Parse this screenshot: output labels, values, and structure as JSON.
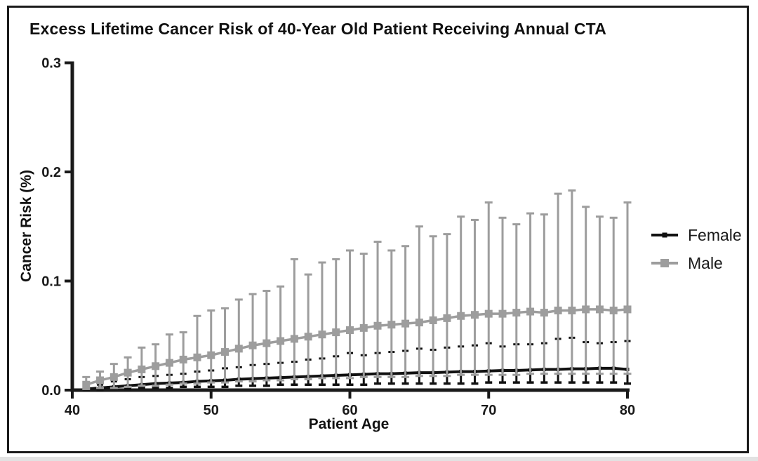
{
  "chart_data": {
    "type": "line",
    "title": "Excess Lifetime Cancer Risk of 40-Year Old Patient Receiving Annual CTA",
    "xlabel": "Patient Age",
    "ylabel": "Cancer Risk (%)",
    "xlim": [
      40,
      80
    ],
    "ylim": [
      0.0,
      0.3
    ],
    "x_ticks": [
      40,
      50,
      60,
      70,
      80
    ],
    "y_ticks": [
      "0.0",
      "0.1",
      "0.2",
      "0.3"
    ],
    "grid": false,
    "legend_position": "right-middle",
    "error_bars": true,
    "x": [
      41,
      42,
      43,
      44,
      45,
      46,
      47,
      48,
      49,
      50,
      51,
      52,
      53,
      54,
      55,
      56,
      57,
      58,
      59,
      60,
      61,
      62,
      63,
      64,
      65,
      66,
      67,
      68,
      69,
      70,
      71,
      72,
      73,
      74,
      75,
      76,
      77,
      78,
      79,
      80
    ],
    "series": [
      {
        "name": "Female",
        "color": "#111111",
        "marker": "small-square",
        "mean": [
          0.001,
          0.002,
          0.003,
          0.004,
          0.005,
          0.006,
          0.0065,
          0.007,
          0.008,
          0.0085,
          0.009,
          0.01,
          0.0105,
          0.011,
          0.0115,
          0.012,
          0.0125,
          0.013,
          0.0135,
          0.014,
          0.0145,
          0.015,
          0.015,
          0.0155,
          0.016,
          0.016,
          0.0165,
          0.017,
          0.017,
          0.0175,
          0.018,
          0.018,
          0.0185,
          0.019,
          0.019,
          0.0195,
          0.0195,
          0.02,
          0.02,
          0.019
        ],
        "upper": [
          0.003,
          0.005,
          0.008,
          0.01,
          0.012,
          0.013,
          0.014,
          0.015,
          0.017,
          0.018,
          0.02,
          0.021,
          0.023,
          0.024,
          0.025,
          0.026,
          0.028,
          0.029,
          0.031,
          0.034,
          0.032,
          0.034,
          0.035,
          0.036,
          0.038,
          0.037,
          0.039,
          0.04,
          0.041,
          0.043,
          0.04,
          0.042,
          0.042,
          0.043,
          0.047,
          0.048,
          0.044,
          0.043,
          0.044,
          0.045
        ],
        "lower": [
          0.0,
          0.0,
          0.001,
          0.001,
          0.002,
          0.002,
          0.002,
          0.003,
          0.003,
          0.003,
          0.003,
          0.004,
          0.004,
          0.004,
          0.005,
          0.005,
          0.005,
          0.005,
          0.005,
          0.005,
          0.005,
          0.006,
          0.006,
          0.006,
          0.006,
          0.006,
          0.006,
          0.006,
          0.006,
          0.007,
          0.007,
          0.007,
          0.007,
          0.007,
          0.007,
          0.007,
          0.007,
          0.007,
          0.007,
          0.006
        ]
      },
      {
        "name": "Male",
        "color": "#9d9d9d",
        "marker": "square",
        "mean": [
          0.005,
          0.009,
          0.012,
          0.016,
          0.019,
          0.022,
          0.025,
          0.028,
          0.03,
          0.032,
          0.035,
          0.038,
          0.041,
          0.043,
          0.045,
          0.047,
          0.049,
          0.051,
          0.053,
          0.055,
          0.057,
          0.059,
          0.06,
          0.061,
          0.062,
          0.064,
          0.066,
          0.068,
          0.069,
          0.07,
          0.07,
          0.071,
          0.072,
          0.071,
          0.073,
          0.073,
          0.074,
          0.074,
          0.073,
          0.074
        ],
        "upper": [
          0.012,
          0.017,
          0.024,
          0.03,
          0.039,
          0.042,
          0.051,
          0.053,
          0.068,
          0.073,
          0.075,
          0.083,
          0.088,
          0.091,
          0.095,
          0.12,
          0.106,
          0.117,
          0.12,
          0.128,
          0.125,
          0.136,
          0.128,
          0.132,
          0.15,
          0.141,
          0.143,
          0.159,
          0.156,
          0.172,
          0.158,
          0.152,
          0.162,
          0.161,
          0.18,
          0.183,
          0.168,
          0.159,
          0.158,
          0.172
        ],
        "lower": [
          0.001,
          0.002,
          0.002,
          0.003,
          0.004,
          0.004,
          0.005,
          0.006,
          0.006,
          0.007,
          0.007,
          0.008,
          0.008,
          0.009,
          0.009,
          0.01,
          0.01,
          0.011,
          0.011,
          0.011,
          0.012,
          0.012,
          0.012,
          0.012,
          0.013,
          0.013,
          0.013,
          0.014,
          0.014,
          0.014,
          0.014,
          0.014,
          0.015,
          0.015,
          0.015,
          0.015,
          0.015,
          0.015,
          0.015,
          0.015
        ]
      }
    ]
  },
  "colors": {
    "axis": "#1a1a1a",
    "female": "#111111",
    "male": "#9d9d9d",
    "background": "#ffffff"
  }
}
